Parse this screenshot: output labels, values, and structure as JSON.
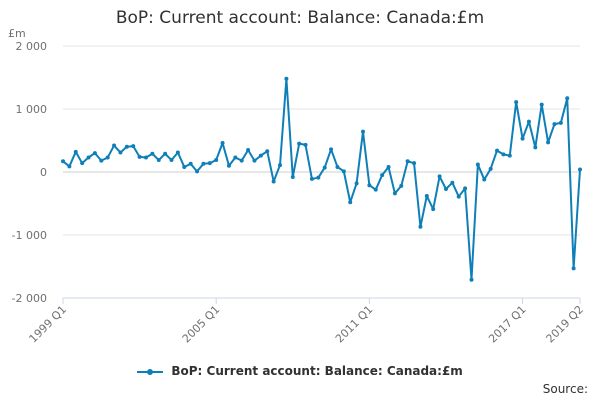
{
  "chart_data": {
    "type": "line",
    "title": "BoP: Current account: Balance: Canada:£m",
    "unit_label": "£m",
    "ylim": [
      -2000,
      2000
    ],
    "y_ticks": [
      {
        "value": 2000,
        "label": "2 000"
      },
      {
        "value": 1000,
        "label": "1 000"
      },
      {
        "value": 0,
        "label": "0"
      },
      {
        "value": -1000,
        "label": "-1 000"
      },
      {
        "value": -2000,
        "label": "-2 000"
      }
    ],
    "x_ticks": [
      {
        "index": 0,
        "label": "1999 Q1"
      },
      {
        "index": 24,
        "label": "2005 Q1"
      },
      {
        "index": 48,
        "label": "2011 Q1"
      },
      {
        "index": 72,
        "label": "2017 Q1"
      },
      {
        "index": 81,
        "label": "2019 Q2"
      }
    ],
    "grid": true,
    "legend_position": "bottom",
    "series": [
      {
        "name": "BoP: Current account: Balance: Canada:£m",
        "color": "#0f7fb8",
        "values": [
          170,
          90,
          320,
          140,
          230,
          300,
          180,
          230,
          420,
          310,
          400,
          410,
          240,
          230,
          290,
          190,
          290,
          190,
          310,
          80,
          130,
          10,
          130,
          140,
          190,
          460,
          100,
          230,
          180,
          350,
          180,
          260,
          330,
          -150,
          110,
          1480,
          -80,
          450,
          430,
          -110,
          -90,
          70,
          360,
          80,
          10,
          -480,
          -180,
          640,
          -210,
          -280,
          -50,
          80,
          -340,
          -220,
          170,
          140,
          -870,
          -380,
          -590,
          -70,
          -270,
          -170,
          -390,
          -260,
          -1710,
          120,
          -120,
          50,
          340,
          280,
          260,
          1110,
          530,
          800,
          390,
          1070,
          470,
          760,
          780,
          1170,
          -1530,
          40
        ]
      }
    ]
  },
  "source_label": "Source:"
}
